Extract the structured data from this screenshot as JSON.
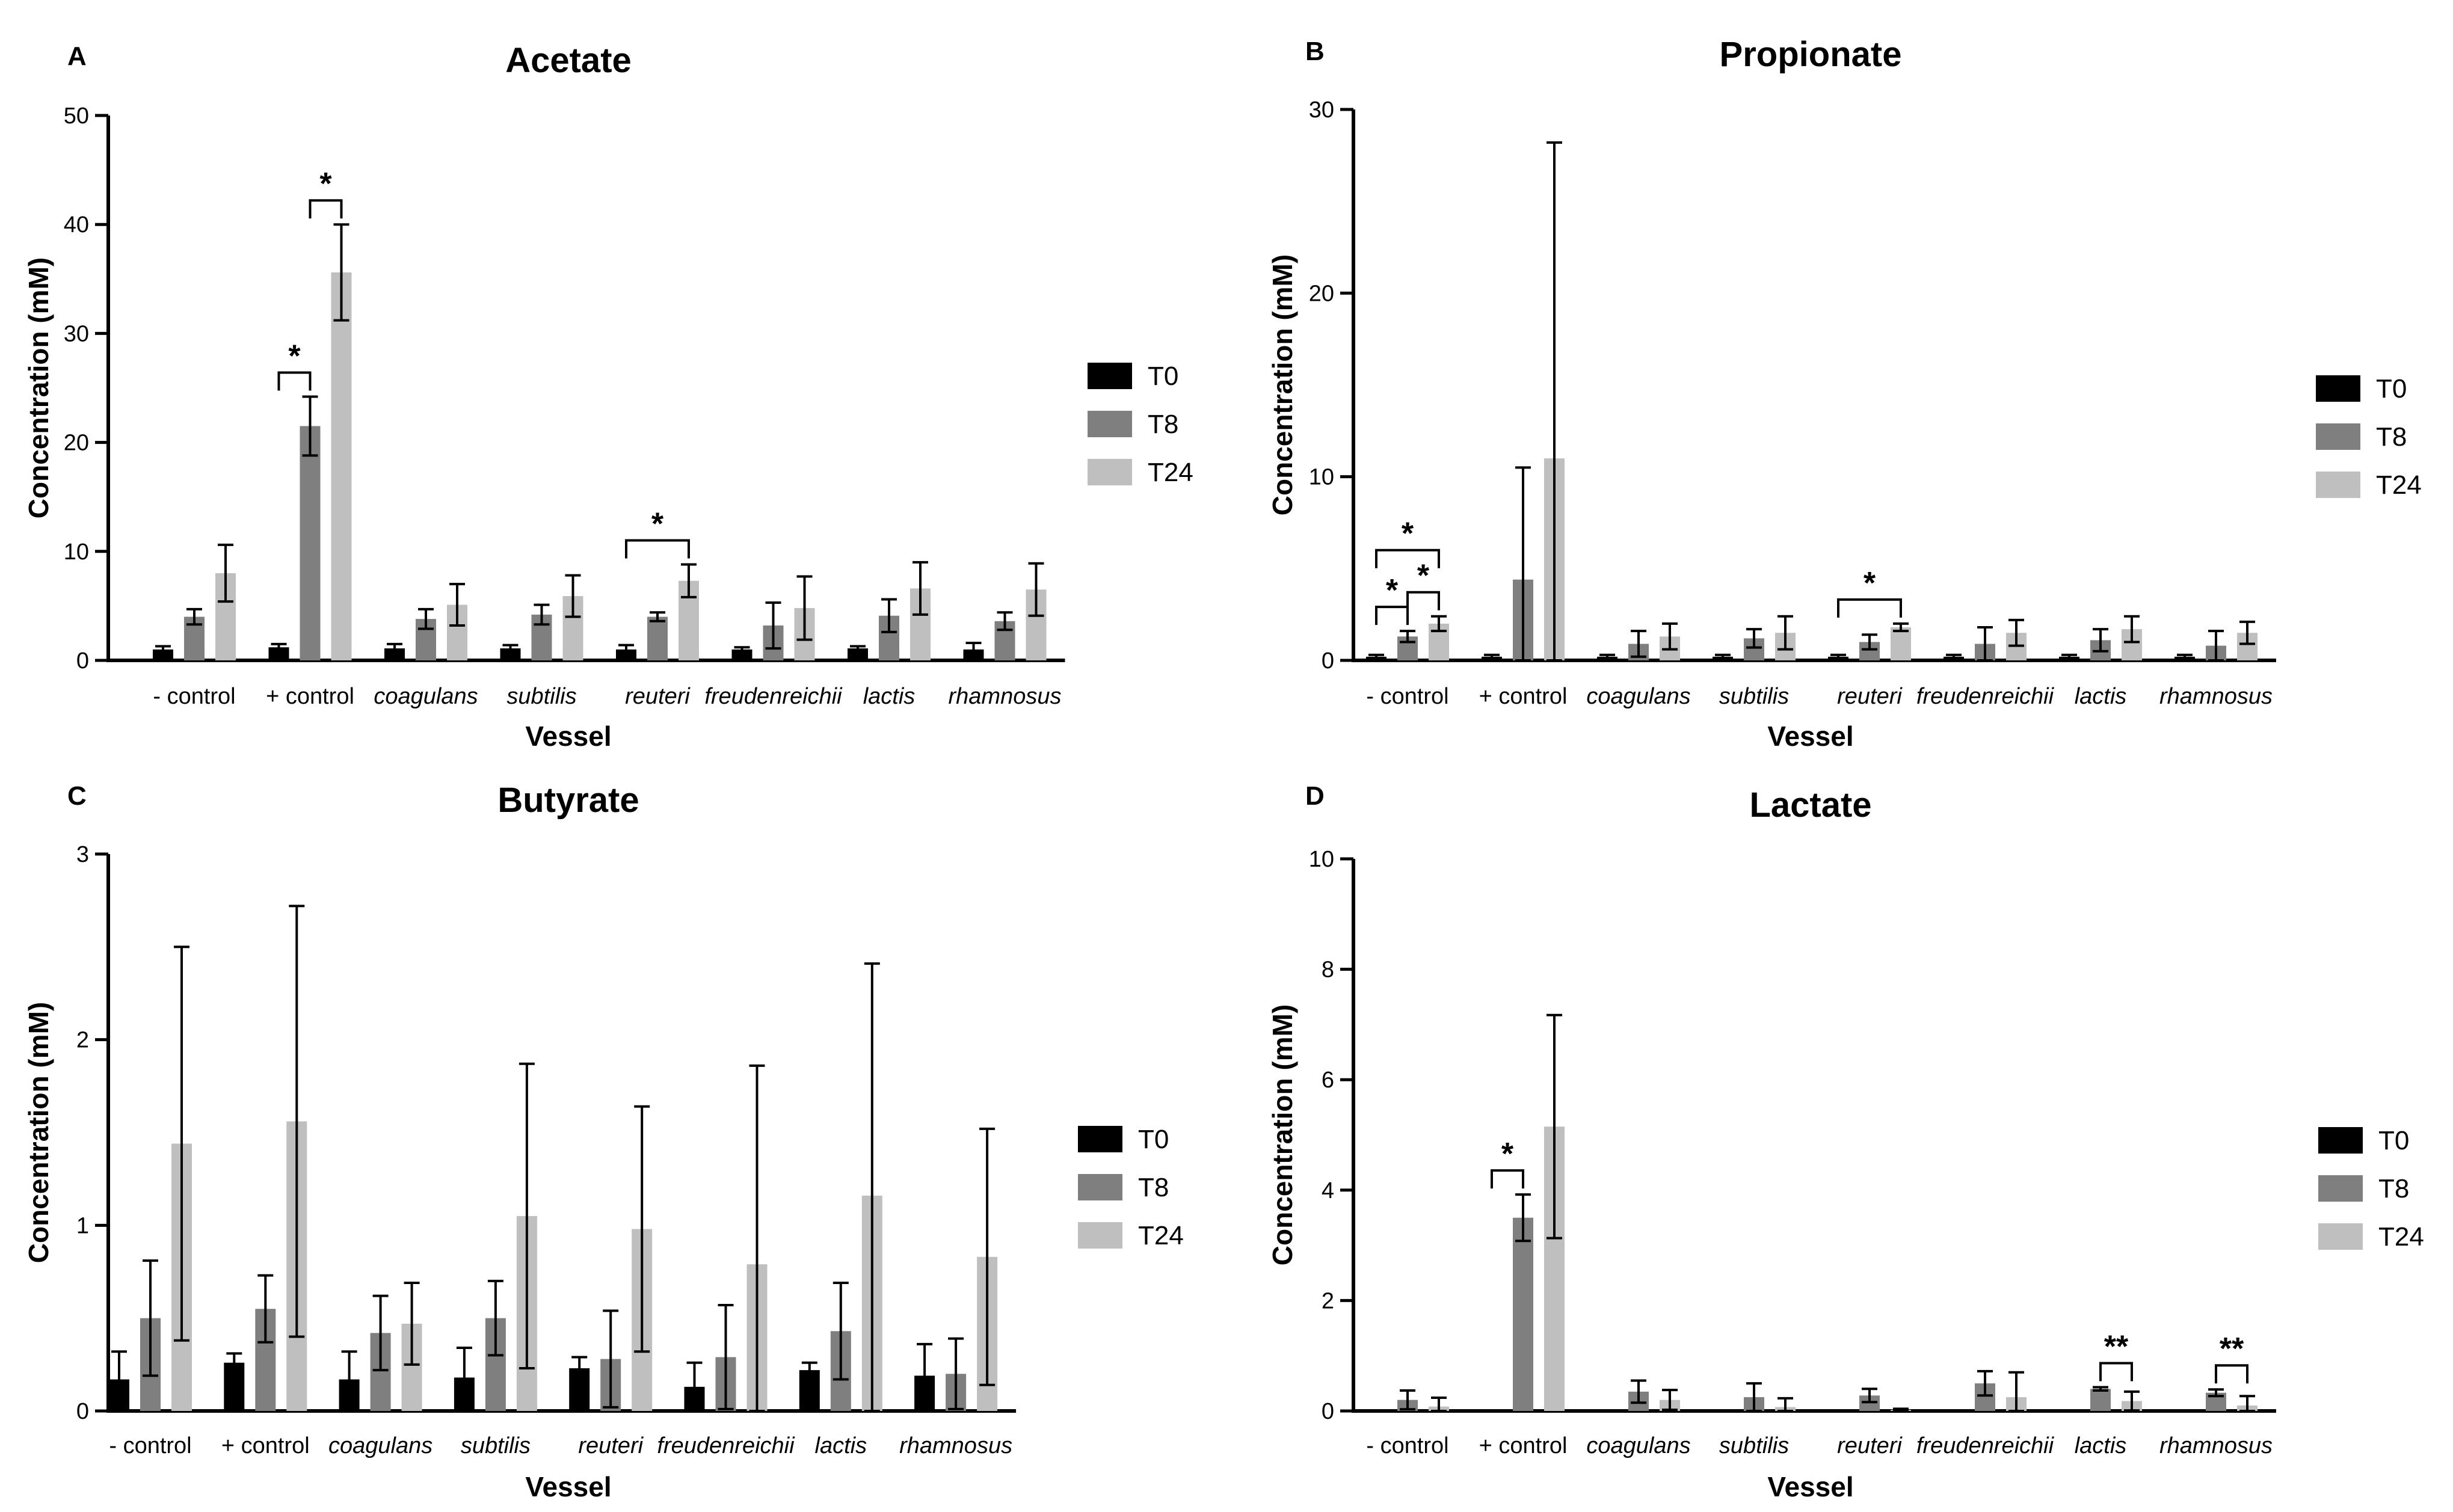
{
  "legend": {
    "T0": "T0",
    "T8": "T8",
    "T24": "T24"
  },
  "colors": {
    "T0": "#000000",
    "T8": "#7f7f7f",
    "T24": "#bfbfbf"
  },
  "chart_data": [
    {
      "panel": "A",
      "type": "bar",
      "title": "Acetate",
      "xlabel": "Vessel",
      "ylabel": "Concentration (mM)",
      "ylim": [
        0,
        50
      ],
      "yticks": [
        0,
        10,
        20,
        30,
        40,
        50
      ],
      "legend_position": "right",
      "categories": [
        "- control",
        "+ control",
        "coagulans",
        "subtilis",
        "reuteri",
        "freudenreichii",
        "lactis",
        "rhamnosus"
      ],
      "italic_categories": [
        false,
        false,
        true,
        true,
        true,
        true,
        true,
        true
      ],
      "series": [
        {
          "name": "T0",
          "values": [
            1.0,
            1.2,
            1.1,
            1.1,
            1.0,
            1.0,
            1.1,
            1.0
          ],
          "errors": [
            0.3,
            0.3,
            0.4,
            0.3,
            0.4,
            0.2,
            0.2,
            0.6
          ]
        },
        {
          "name": "T8",
          "values": [
            4.0,
            21.5,
            3.8,
            4.2,
            4.0,
            3.2,
            4.1,
            3.6
          ],
          "errors": [
            0.7,
            2.7,
            0.9,
            0.9,
            0.4,
            2.1,
            1.5,
            0.8
          ]
        },
        {
          "name": "T24",
          "values": [
            8.0,
            35.6,
            5.1,
            5.9,
            7.3,
            4.8,
            6.6,
            6.5
          ],
          "errors": [
            2.6,
            4.4,
            1.9,
            1.9,
            1.5,
            2.9,
            2.4,
            2.4
          ]
        }
      ],
      "annotations": [
        {
          "category": 1,
          "from": "T0",
          "to": "T8",
          "label": "*"
        },
        {
          "category": 1,
          "from": "T8",
          "to": "T24",
          "label": "*"
        },
        {
          "category": 4,
          "from": "T0",
          "to": "T24",
          "label": "*"
        }
      ]
    },
    {
      "panel": "B",
      "type": "bar",
      "title": "Propionate",
      "xlabel": "Vessel",
      "ylabel": "Concentration (mM)",
      "ylim": [
        0,
        30
      ],
      "yticks": [
        0,
        10,
        20,
        30
      ],
      "legend_position": "right",
      "categories": [
        "- control",
        "+ control",
        "coagulans",
        "subtilis",
        "reuteri",
        "freudenreichii",
        "lactis",
        "rhamnosus"
      ],
      "italic_categories": [
        false,
        false,
        true,
        true,
        true,
        true,
        true,
        true
      ],
      "series": [
        {
          "name": "T0",
          "values": [
            0.2,
            0.2,
            0.2,
            0.2,
            0.2,
            0.2,
            0.2,
            0.2
          ],
          "errors": [
            0.1,
            0.1,
            0.1,
            0.1,
            0.1,
            0.1,
            0.1,
            0.1
          ]
        },
        {
          "name": "T8",
          "values": [
            1.3,
            4.4,
            0.9,
            1.2,
            1.0,
            0.9,
            1.1,
            0.8
          ],
          "errors": [
            0.3,
            6.1,
            0.7,
            0.5,
            0.4,
            0.9,
            0.6,
            0.8
          ]
        },
        {
          "name": "T24",
          "values": [
            2.0,
            11.0,
            1.3,
            1.5,
            1.8,
            1.5,
            1.7,
            1.5
          ],
          "errors": [
            0.4,
            17.2,
            0.7,
            0.9,
            0.2,
            0.7,
            0.7,
            0.6
          ]
        }
      ],
      "annotations": [
        {
          "category": 0,
          "from": "T0",
          "to": "T8",
          "label": "*"
        },
        {
          "category": 0,
          "from": "T8",
          "to": "T24",
          "label": "*"
        },
        {
          "category": 0,
          "from": "T0",
          "to": "T24",
          "label": "*"
        },
        {
          "category": 4,
          "from": "T0",
          "to": "T24",
          "label": "*"
        }
      ]
    },
    {
      "panel": "C",
      "type": "bar",
      "title": "Butyrate",
      "xlabel": "Vessel",
      "ylabel": "Concentration (mM)",
      "ylim": [
        0,
        3
      ],
      "yticks": [
        0,
        1,
        2,
        3
      ],
      "legend_position": "right",
      "categories": [
        "- control",
        "+ control",
        "coagulans",
        "subtilis",
        "reuteri",
        "freudenreichii",
        "lactis",
        "rhamnosus"
      ],
      "italic_categories": [
        false,
        false,
        true,
        true,
        true,
        true,
        true,
        true
      ],
      "series": [
        {
          "name": "T0",
          "values": [
            0.17,
            0.26,
            0.17,
            0.18,
            0.23,
            0.13,
            0.22,
            0.19
          ],
          "errors": [
            0.15,
            0.05,
            0.15,
            0.16,
            0.06,
            0.13,
            0.04,
            0.17
          ]
        },
        {
          "name": "T8",
          "values": [
            0.5,
            0.55,
            0.42,
            0.5,
            0.28,
            0.29,
            0.43,
            0.2
          ],
          "errors": [
            0.31,
            0.18,
            0.2,
            0.2,
            0.26,
            0.28,
            0.26,
            0.19
          ]
        },
        {
          "name": "T24",
          "values": [
            1.44,
            1.56,
            0.47,
            1.05,
            0.98,
            0.79,
            1.16,
            0.83
          ],
          "errors": [
            1.06,
            1.16,
            0.22,
            0.82,
            0.66,
            1.07,
            1.25,
            0.69
          ]
        }
      ],
      "annotations": []
    },
    {
      "panel": "D",
      "type": "bar",
      "title": "Lactate",
      "xlabel": "Vessel",
      "ylabel": "Concentration (mM)",
      "ylim": [
        0,
        10
      ],
      "yticks": [
        0,
        2,
        4,
        6,
        8,
        10
      ],
      "legend_position": "right",
      "categories": [
        "- control",
        "+ control",
        "coagulans",
        "subtilis",
        "reuteri",
        "freudenreichii",
        "lactis",
        "rhamnosus"
      ],
      "italic_categories": [
        false,
        false,
        true,
        true,
        true,
        true,
        true,
        true
      ],
      "series": [
        {
          "name": "T0",
          "values": [
            0,
            0,
            0,
            0,
            0,
            0,
            0,
            0
          ],
          "errors": [
            0,
            0,
            0,
            0,
            0,
            0,
            0,
            0
          ]
        },
        {
          "name": "T8",
          "values": [
            0.2,
            3.5,
            0.35,
            0.25,
            0.28,
            0.5,
            0.4,
            0.33
          ],
          "errors": [
            0.17,
            0.42,
            0.2,
            0.25,
            0.12,
            0.22,
            0.03,
            0.06
          ]
        },
        {
          "name": "T24",
          "values": [
            0.08,
            5.15,
            0.2,
            0.07,
            0.02,
            0.25,
            0.18,
            0.1
          ],
          "errors": [
            0.16,
            2.02,
            0.18,
            0.16,
            0.02,
            0.45,
            0.17,
            0.17
          ]
        }
      ],
      "annotations": [
        {
          "category": 1,
          "from": "T0",
          "to": "T8",
          "label": "*"
        },
        {
          "category": 6,
          "from": "T8",
          "to": "T24",
          "label": "**"
        },
        {
          "category": 7,
          "from": "T8",
          "to": "T24",
          "label": "**"
        }
      ]
    }
  ]
}
